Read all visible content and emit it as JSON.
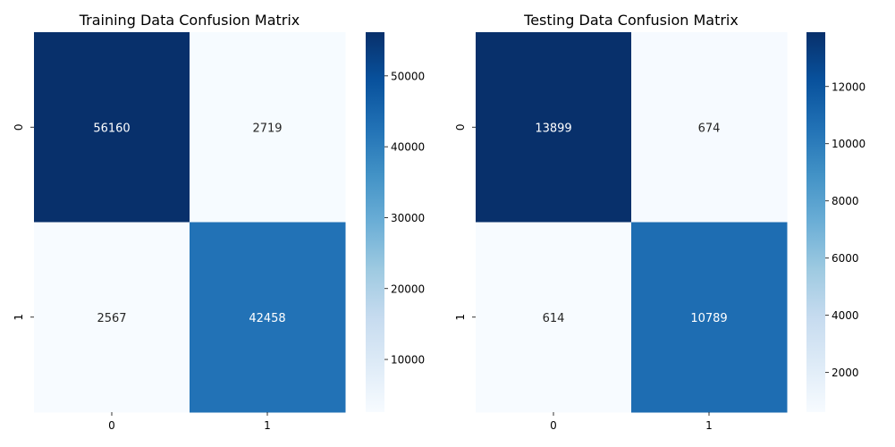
{
  "chart_data": [
    {
      "type": "heatmap",
      "title": "Training Data Confusion Matrix",
      "xlabel": "",
      "ylabel": "",
      "x_categories": [
        "0",
        "1"
      ],
      "y_categories": [
        "0",
        "1"
      ],
      "values": [
        [
          56160,
          2719
        ],
        [
          2567,
          42458
        ]
      ],
      "colormap": "Blues",
      "colorbar": {
        "range": [
          2567,
          56160
        ],
        "ticks": [
          10000,
          20000,
          30000,
          40000,
          50000
        ],
        "tick_labels": [
          "10000",
          "20000",
          "30000",
          "40000",
          "50000"
        ]
      }
    },
    {
      "type": "heatmap",
      "title": "Testing Data Confusion Matrix",
      "xlabel": "",
      "ylabel": "",
      "x_categories": [
        "0",
        "1"
      ],
      "y_categories": [
        "0",
        "1"
      ],
      "values": [
        [
          13899,
          674
        ],
        [
          614,
          10789
        ]
      ],
      "colormap": "Blues",
      "colorbar": {
        "range": [
          614,
          13899
        ],
        "ticks": [
          2000,
          4000,
          6000,
          8000,
          10000,
          12000
        ],
        "tick_labels": [
          "2000",
          "4000",
          "6000",
          "8000",
          "10000",
          "12000"
        ]
      }
    }
  ]
}
